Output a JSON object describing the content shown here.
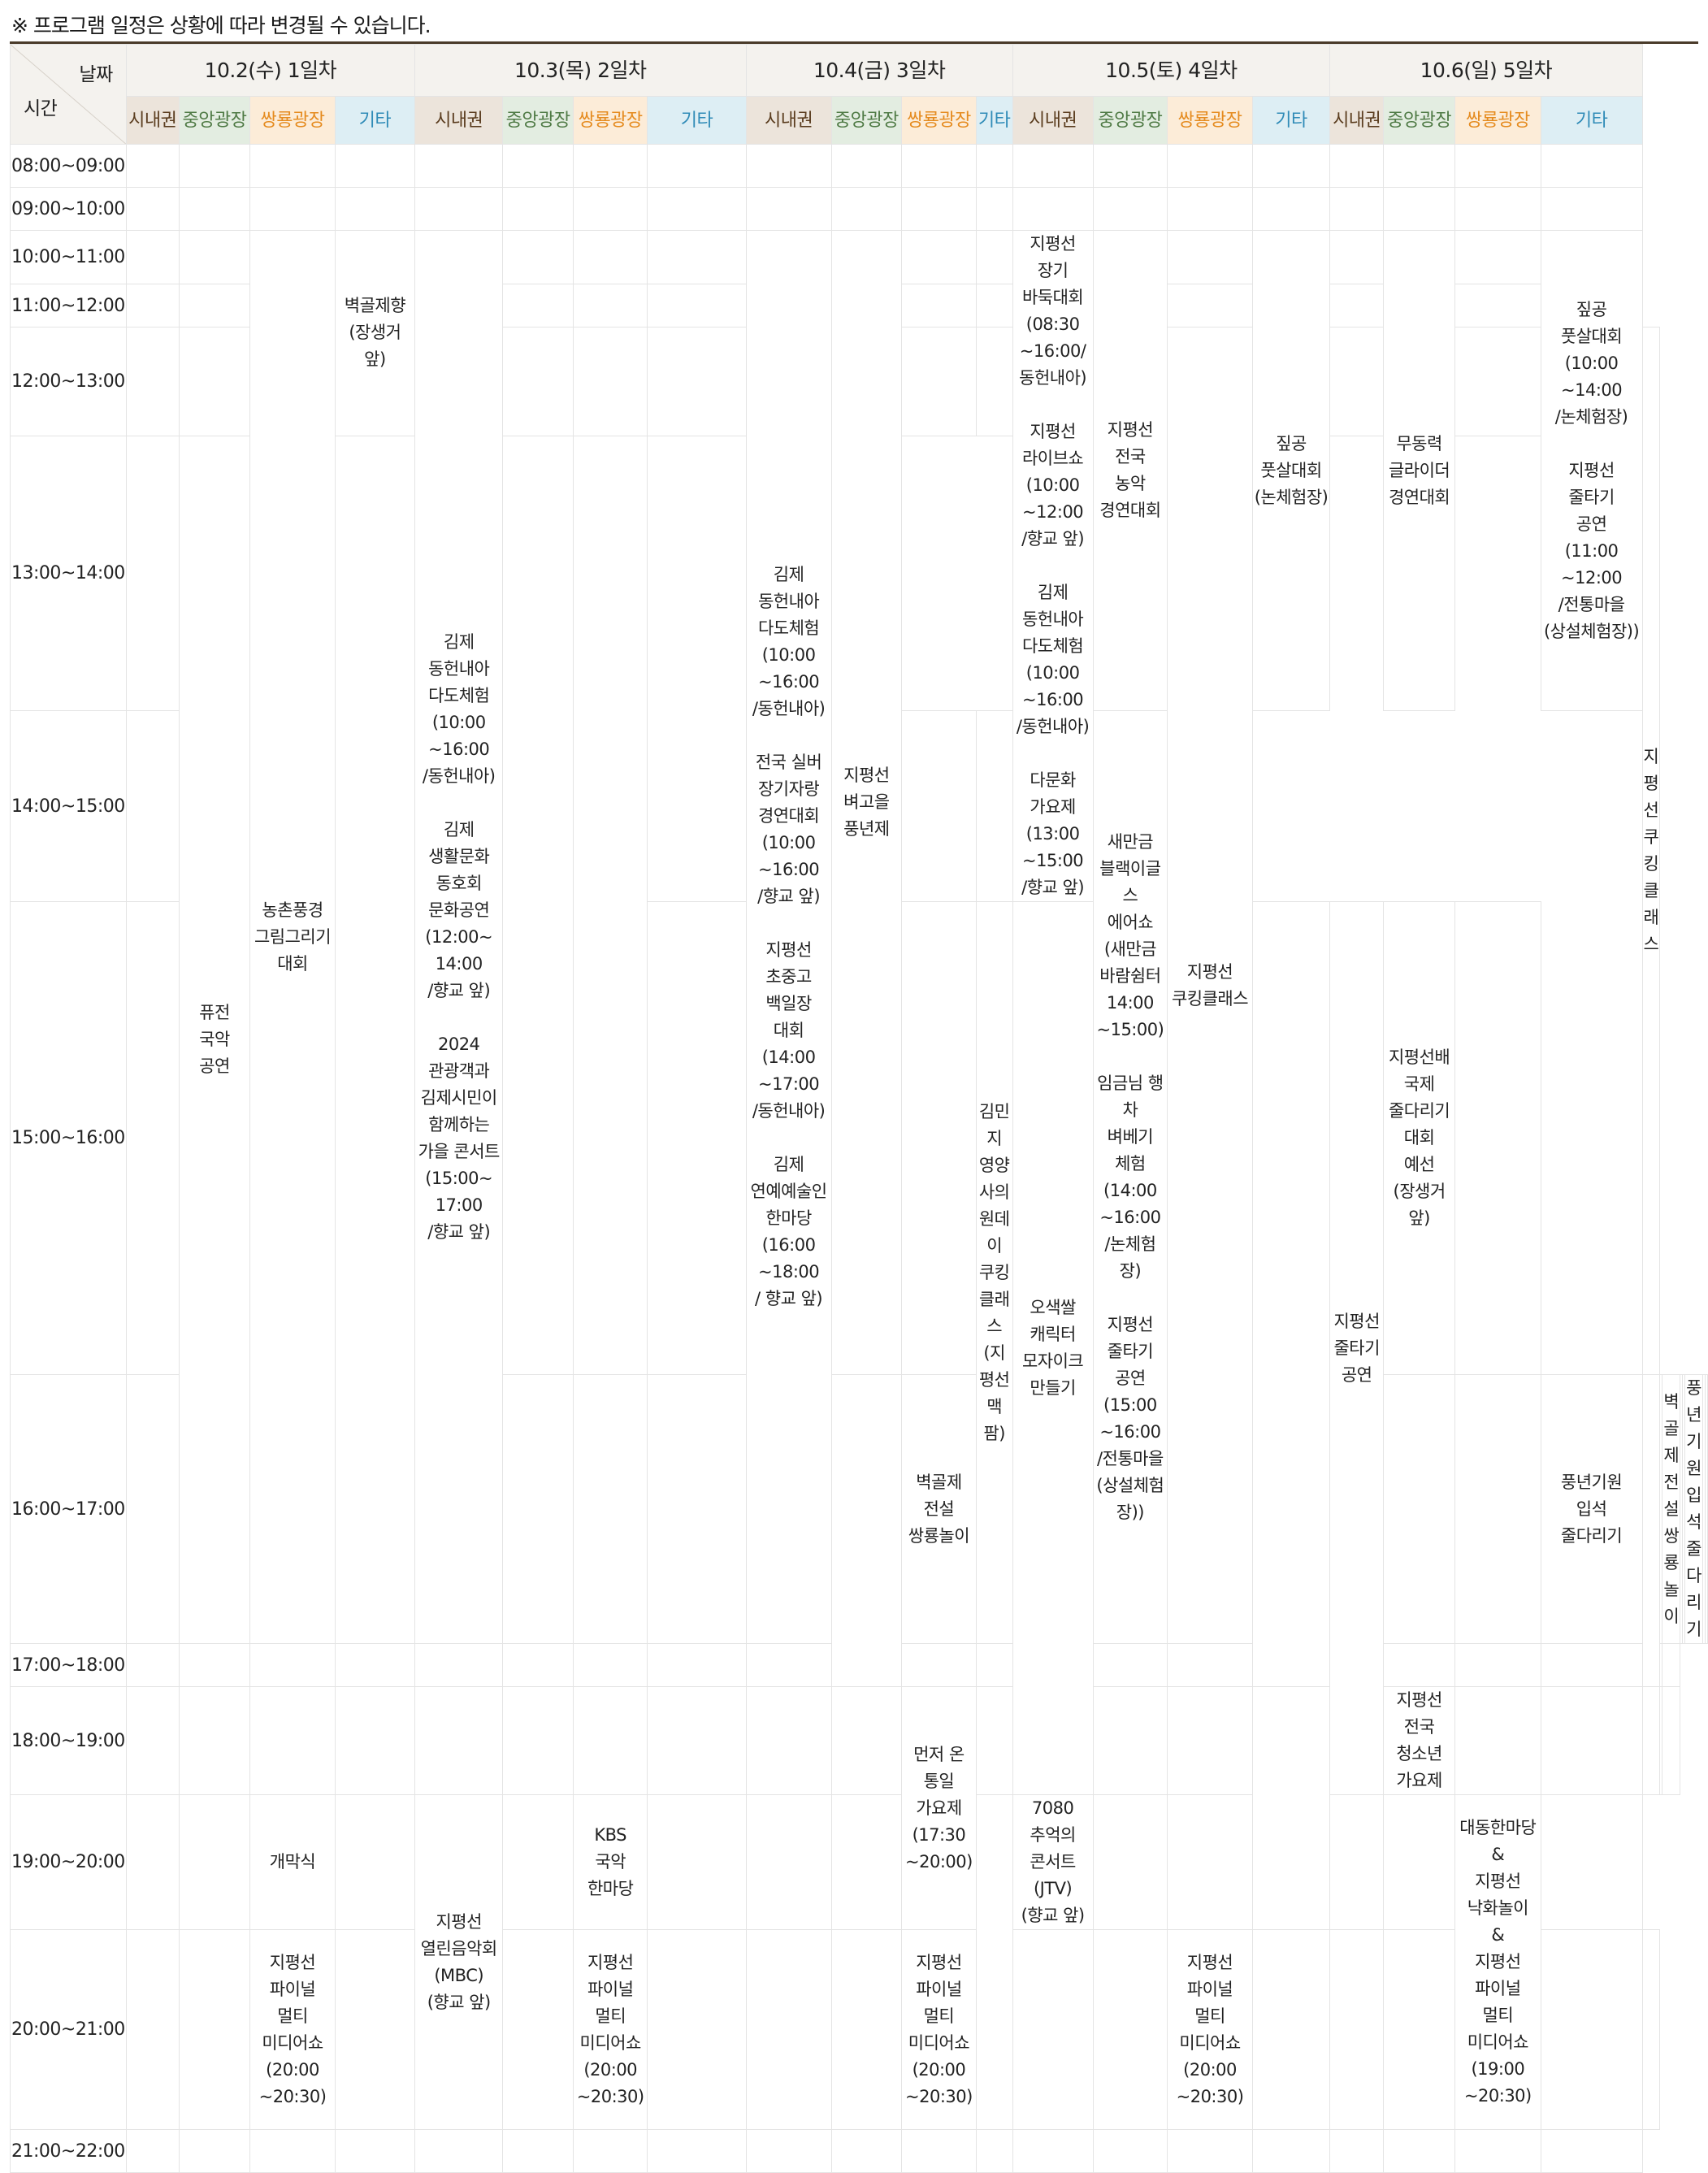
{
  "notice": "※ 프로그램 일정은 상황에 따라 변경될 수 있습니다.",
  "header": {
    "date_label": "날짜",
    "time_label": "시간"
  },
  "days": [
    {
      "label": "10.2(수) 1일차"
    },
    {
      "label": "10.3(목) 2일차"
    },
    {
      "label": "10.4(금) 3일차"
    },
    {
      "label": "10.5(토) 4일차"
    },
    {
      "label": "10.6(일) 5일차"
    }
  ],
  "venues": [
    "시내권",
    "중앙광장",
    "쌍룡광장",
    "기타"
  ],
  "venue_colors": {
    "시내권": "#5a3c1e",
    "중앙광장": "#4f7a45",
    "쌍룡광장": "#e58b1f",
    "기타": "#2f8bb7"
  },
  "time_slots": [
    "08:00~09:00",
    "09:00~10:00",
    "10:00~11:00",
    "11:00~12:00",
    "12:00~13:00",
    "13:00~14:00",
    "14:00~15:00",
    "15:00~16:00",
    "16:00~17:00",
    "17:00~18:00",
    "18:00~19:00",
    "19:00~20:00",
    "20:00~21:00",
    "21:00~22:00"
  ],
  "schedule": [
    [
      {
        "text": ""
      },
      {
        "text": ""
      },
      {
        "text": ""
      },
      {
        "text": ""
      },
      {
        "text": ""
      },
      {
        "text": ""
      },
      {
        "text": ""
      },
      {
        "text": ""
      },
      {
        "text": ""
      },
      {
        "text": ""
      },
      {
        "text": ""
      },
      {
        "text": ""
      },
      {
        "text": ""
      },
      {
        "text": ""
      },
      {
        "text": ""
      },
      {
        "text": ""
      },
      {
        "text": ""
      },
      {
        "text": ""
      },
      {
        "text": ""
      },
      {
        "text": ""
      }
    ],
    [
      {
        "text": ""
      },
      {
        "text": ""
      },
      {
        "text": ""
      },
      {
        "text": ""
      },
      {
        "text": ""
      },
      {
        "text": ""
      },
      {
        "text": ""
      },
      {
        "text": ""
      },
      {
        "text": ""
      },
      {
        "text": ""
      },
      {
        "text": ""
      },
      {
        "text": ""
      },
      {
        "text": ""
      },
      {
        "text": ""
      },
      {
        "text": ""
      },
      {
        "text": ""
      },
      {
        "text": ""
      },
      {
        "text": ""
      },
      {
        "text": ""
      },
      {
        "text": ""
      }
    ],
    [
      {
        "text": ""
      },
      {
        "text": ""
      },
      {
        "text": "농촌풍경\n그림그리기\n대회"
      },
      {
        "text": "벽골제향\n(장생거 앞)"
      },
      {
        "text": "김제\n동헌내아\n다도체험\n(10:00\n~16:00\n/동헌내아)\n\n김제\n생활문화\n동호회\n문화공연\n(12:00~\n14:00\n/향교 앞)\n\n2024\n관광객과\n김제시민이\n함께하는\n가을 콘서트\n(15:00~\n17:00\n/향교 앞)"
      },
      {
        "text": ""
      },
      {
        "text": ""
      },
      {
        "text": ""
      },
      {
        "text": "김제\n동헌내아\n다도체험\n(10:00\n~16:00\n/동헌내아)\n\n전국 실버\n장기자랑\n경연대회\n(10:00\n~16:00\n/향교 앞)\n\n지평선\n초중고\n백일장\n대회\n(14:00\n~17:00\n/동헌내아)\n\n김제\n연예예술인\n한마당\n(16:00\n~18:00\n/ 향교 앞)"
      },
      {
        "text": "지평선\n벼고을\n풍년제"
      },
      {
        "text": ""
      },
      {
        "text": ""
      },
      {
        "text": "지평선\n장기\n바둑대회\n(08:30\n~16:00/\n동헌내아)\n\n지평선\n라이브쇼\n(10:00\n~12:00\n/향교 앞)\n\n김제\n동헌내아\n다도체험\n(10:00\n~16:00\n/동헌내아)\n\n다문화\n가요제\n(13:00\n~15:00\n/향교 앞)"
      },
      {
        "text": "지평선\n전국\n농악\n경연대회"
      },
      {
        "text": ""
      },
      {
        "text": "짚공\n풋살대회\n(논체험장)"
      },
      {
        "text": ""
      },
      {
        "text": "무동력\n글라이더\n경연대회"
      },
      {
        "text": ""
      },
      {
        "text": "짚공\n풋살대회\n(10:00\n~14:00\n/논체험장)\n\n지평선\n줄타기\n공연\n(11:00\n~12:00\n/전통마을\n(상설체험장))"
      }
    ],
    [
      {
        "text": ""
      },
      {
        "text": ""
      },
      {
        "text": ""
      },
      {
        "text": ""
      },
      {
        "text": ""
      },
      {
        "text": ""
      },
      {
        "text": ""
      },
      {
        "text": ""
      },
      {
        "text": ""
      }
    ],
    [
      {
        "text": ""
      },
      {
        "text": ""
      },
      {
        "text": ""
      },
      {
        "text": ""
      },
      {
        "text": ""
      },
      {
        "text": ""
      },
      {
        "text": ""
      },
      {
        "text": "지평선\n쿠킹클래스"
      },
      {
        "text": ""
      },
      {
        "text": ""
      },
      {
        "text": "지평선\n쿠킹\n클래스"
      }
    ],
    [
      {
        "text": ""
      },
      {
        "text": "퓨전\n국악\n공연"
      },
      {
        "text": ""
      },
      {
        "text": ""
      },
      {
        "text": ""
      },
      {
        "text": ""
      }
    ],
    [
      {
        "text": ""
      },
      {
        "text": ""
      },
      {
        "text": ""
      },
      {
        "text": "새만금\n블랙이글스\n에어쇼\n(새만금\n바람쉼터\n14:00\n~15:00)\n\n임금님 행차\n벼베기\n체험\n(14:00\n~16:00\n/논체험장)\n\n지평선\n줄타기\n공연\n(15:00\n~16:00\n/전통마을\n(상설체험장))"
      }
    ],
    [
      {
        "text": ""
      },
      {
        "text": ""
      },
      {
        "text": ""
      },
      {
        "text": "김민지\n영양사의\n원데이\n쿠킹\n클래스\n(지평선 맥 팜)"
      },
      {
        "text": "오색쌀\n캐릭터\n모자이크\n만들기"
      },
      {
        "text": ""
      },
      {
        "text": "지평선\n줄타기\n공연"
      },
      {
        "text": "지평선배\n국제\n줄다리기\n대회\n예선\n(장생거앞)"
      },
      {
        "text": ""
      }
    ],
    [
      {
        "text": ""
      },
      {
        "text": ""
      },
      {
        "text": ""
      },
      {
        "text": ""
      },
      {
        "text": ""
      },
      {
        "text": "벽골제\n전설\n쌍룡놀이"
      },
      {
        "text": ""
      },
      {
        "text": ""
      },
      {
        "text": "풍년기원\n입석\n줄다리기"
      },
      {
        "text": ""
      },
      {
        "text": ""
      },
      {
        "text": "벽골제\n전설\n쌍룡놀이"
      },
      {
        "text": ""
      },
      {
        "text": ""
      },
      {
        "text": "풍년기원\n입석\n줄다리기"
      },
      {
        "text": ""
      },
      {
        "text": ""
      }
    ],
    [
      {
        "text": ""
      },
      {
        "text": ""
      },
      {
        "text": ""
      },
      {
        "text": ""
      },
      {
        "text": ""
      },
      {
        "text": ""
      },
      {
        "text": ""
      },
      {
        "text": ""
      },
      {
        "text": ""
      },
      {
        "text": ""
      },
      {
        "text": ""
      },
      {
        "text": ""
      },
      {
        "text": ""
      },
      {
        "text": ""
      },
      {
        "text": ""
      },
      {
        "text": ""
      },
      {
        "text": ""
      },
      {
        "text": ""
      }
    ],
    [
      {
        "text": ""
      },
      {
        "text": ""
      },
      {
        "text": ""
      },
      {
        "text": ""
      },
      {
        "text": ""
      },
      {
        "text": ""
      },
      {
        "text": ""
      },
      {
        "text": ""
      },
      {
        "text": ""
      },
      {
        "text": ""
      },
      {
        "text": "먼저 온\n통일\n가요제\n(17:30\n~20:00)"
      },
      {
        "text": ""
      },
      {
        "text": ""
      },
      {
        "text": ""
      },
      {
        "text": ""
      },
      {
        "text": "지평선\n전국\n청소년\n가요제"
      },
      {
        "text": ""
      },
      {
        "text": ""
      },
      {
        "text": ""
      },
      {
        "text": ""
      },
      {
        "text": ""
      }
    ],
    [
      {
        "text": ""
      },
      {
        "text": ""
      },
      {
        "text": "개막식"
      },
      {
        "text": ""
      },
      {
        "text": "지평선\n열린음악회\n(MBC)\n(향교 앞)"
      },
      {
        "text": ""
      },
      {
        "text": "KBS\n국악\n한마당"
      },
      {
        "text": ""
      },
      {
        "text": ""
      },
      {
        "text": ""
      },
      {
        "text": ""
      },
      {
        "text": "7080\n추억의\n콘서트\n(JTV)\n(향교 앞)"
      },
      {
        "text": ""
      },
      {
        "text": ""
      },
      {
        "text": ""
      },
      {
        "text": ""
      },
      {
        "text": "대동한마당\n&\n지평선\n낙화놀이\n&\n지평선\n파이널\n멀티\n미디어쇼\n(19:00\n~20:30)"
      },
      {
        "text": ""
      }
    ],
    [
      {
        "text": ""
      },
      {
        "text": ""
      },
      {
        "text": "지평선\n파이널\n멀티\n미디어쇼\n(20:00\n~20:30)"
      },
      {
        "text": ""
      },
      {
        "text": ""
      },
      {
        "text": "지평선\n파이널\n멀티\n미디어쇼\n(20:00\n~20:30)"
      },
      {
        "text": ""
      },
      {
        "text": ""
      },
      {
        "text": ""
      },
      {
        "text": "지평선\n파이널\n멀티\n미디어쇼\n(20:00\n~20:30)"
      },
      {
        "text": ""
      },
      {
        "text": ""
      },
      {
        "text": "지평선\n파이널\n멀티\n미디어쇼\n(20:00\n~20:30)"
      },
      {
        "text": ""
      },
      {
        "text": ""
      },
      {
        "text": ""
      },
      {
        "text": ""
      },
      {
        "text": ""
      }
    ],
    [
      {
        "text": ""
      },
      {
        "text": ""
      },
      {
        "text": ""
      },
      {
        "text": ""
      },
      {
        "text": ""
      },
      {
        "text": ""
      },
      {
        "text": ""
      },
      {
        "text": ""
      },
      {
        "text": ""
      },
      {
        "text": ""
      },
      {
        "text": ""
      },
      {
        "text": ""
      },
      {
        "text": ""
      },
      {
        "text": ""
      },
      {
        "text": ""
      },
      {
        "text": ""
      },
      {
        "text": ""
      },
      {
        "text": ""
      },
      {
        "text": ""
      },
      {
        "text": ""
      }
    ]
  ]
}
